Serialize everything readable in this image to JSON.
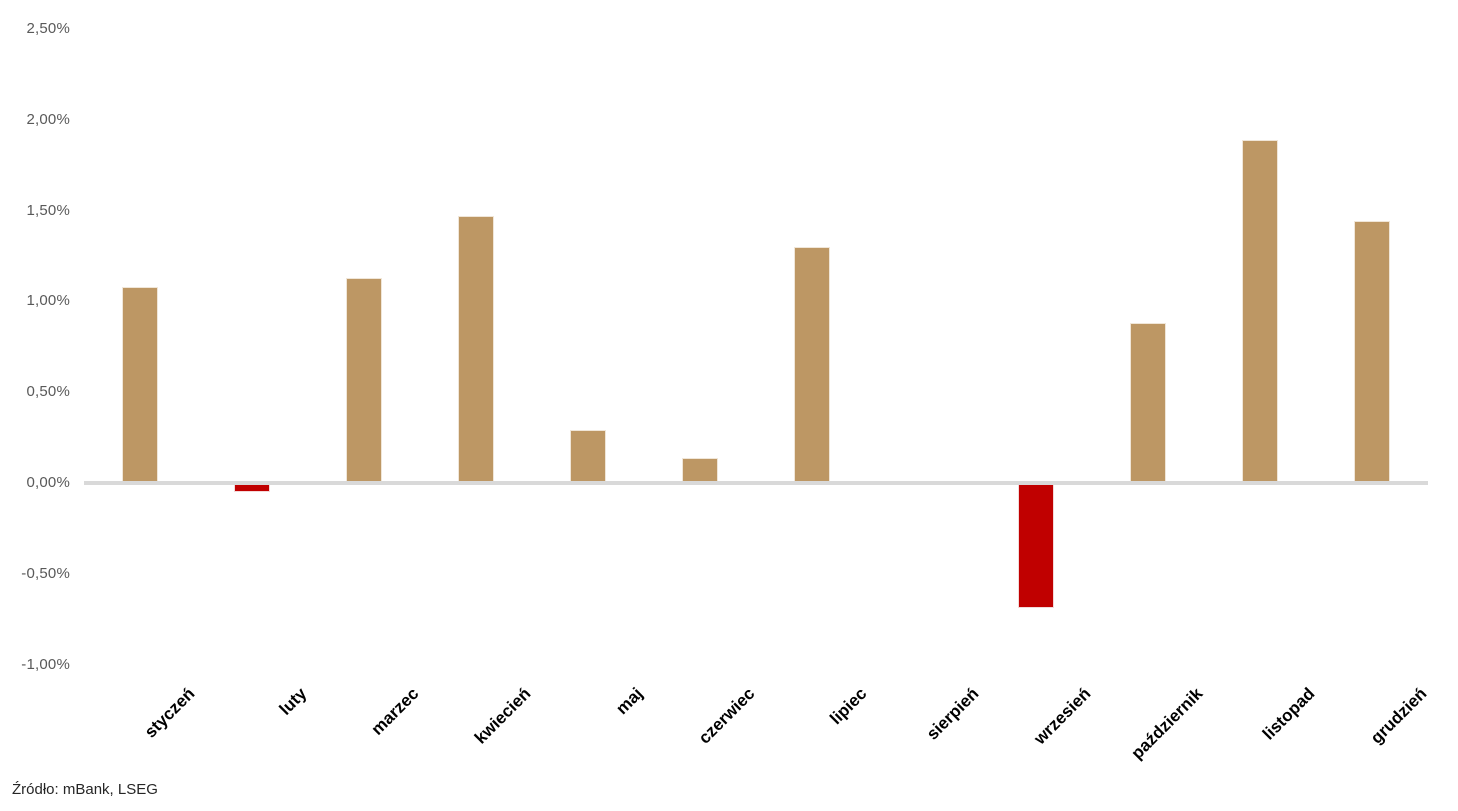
{
  "chart_data": {
    "type": "bar",
    "title": "",
    "xlabel": "",
    "ylabel": "",
    "categories": [
      "styczeń",
      "luty",
      "marzec",
      "kwiecień",
      "maj",
      "czerwiec",
      "lipiec",
      "sierpień",
      "wrzesień",
      "październik",
      "listopad",
      "grudzień"
    ],
    "values": [
      1.08,
      -0.05,
      1.13,
      1.47,
      0.29,
      0.14,
      1.3,
      0.01,
      -0.69,
      0.88,
      1.89,
      1.44
    ],
    "value_unit": "%",
    "y_ticks": [
      {
        "label": "2,50%",
        "value": 2.5
      },
      {
        "label": "2,00%",
        "value": 2.0
      },
      {
        "label": "1,50%",
        "value": 1.5
      },
      {
        "label": "1,00%",
        "value": 1.0
      },
      {
        "label": "0,50%",
        "value": 0.5
      },
      {
        "label": "0,00%",
        "value": 0.0
      },
      {
        "label": "-0,50%",
        "value": -0.5
      },
      {
        "label": "-1,00%",
        "value": -1.0
      }
    ],
    "ylim": [
      -1.0,
      2.5
    ],
    "grid": false,
    "legend_position": "none",
    "colors": {
      "positive_bar": "#bd9764",
      "negative_bar": "#c00000",
      "axis_line": "#d9d9d9",
      "tick_label": "#595959",
      "category_label": "#000000"
    }
  },
  "footer": {
    "source_note": "Źródło: mBank, LSEG"
  }
}
